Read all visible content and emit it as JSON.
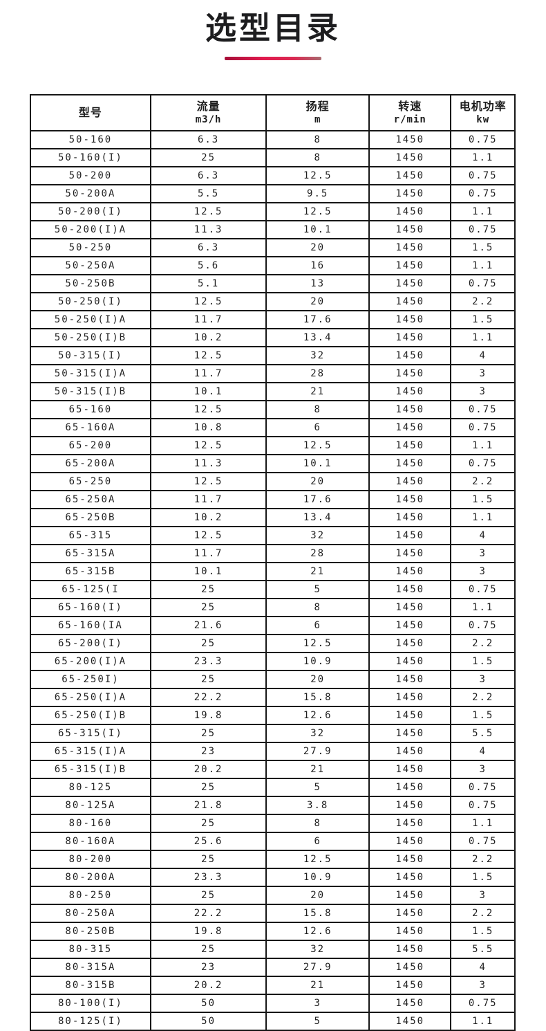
{
  "title": "选型目录",
  "accent": {
    "underline_gradient_start": "#a60f38",
    "underline_gradient_mid": "#e11b4e",
    "underline_gradient_end": "#a96a6f",
    "text_color": "#1d1d1f",
    "border_color": "#161616"
  },
  "table": {
    "columns": [
      {
        "title": "型号",
        "unit": ""
      },
      {
        "title": "流量",
        "unit": "m3/h"
      },
      {
        "title": "扬程",
        "unit": "m"
      },
      {
        "title": "转速",
        "unit": "r/min"
      },
      {
        "title": "电机功率",
        "unit": "kw"
      }
    ],
    "rows": [
      [
        "50-160",
        "6.3",
        "8",
        "1450",
        "0.75"
      ],
      [
        "50-160(I)",
        "25",
        "8",
        "1450",
        "1.1"
      ],
      [
        "50-200",
        "6.3",
        "12.5",
        "1450",
        "0.75"
      ],
      [
        "50-200A",
        "5.5",
        "9.5",
        "1450",
        "0.75"
      ],
      [
        "50-200(I)",
        "12.5",
        "12.5",
        "1450",
        "1.1"
      ],
      [
        "50-200(I)A",
        "11.3",
        "10.1",
        "1450",
        "0.75"
      ],
      [
        "50-250",
        "6.3",
        "20",
        "1450",
        "1.5"
      ],
      [
        "50-250A",
        "5.6",
        "16",
        "1450",
        "1.1"
      ],
      [
        "50-250B",
        "5.1",
        "13",
        "1450",
        "0.75"
      ],
      [
        "50-250(I)",
        "12.5",
        "20",
        "1450",
        "2.2"
      ],
      [
        "50-250(I)A",
        "11.7",
        "17.6",
        "1450",
        "1.5"
      ],
      [
        "50-250(I)B",
        "10.2",
        "13.4",
        "1450",
        "1.1"
      ],
      [
        "50-315(I)",
        "12.5",
        "32",
        "1450",
        "4"
      ],
      [
        "50-315(I)A",
        "11.7",
        "28",
        "1450",
        "3"
      ],
      [
        "50-315(I)B",
        "10.1",
        "21",
        "1450",
        "3"
      ],
      [
        "65-160",
        "12.5",
        "8",
        "1450",
        "0.75"
      ],
      [
        "65-160A",
        "10.8",
        "6",
        "1450",
        "0.75"
      ],
      [
        "65-200",
        "12.5",
        "12.5",
        "1450",
        "1.1"
      ],
      [
        "65-200A",
        "11.3",
        "10.1",
        "1450",
        "0.75"
      ],
      [
        "65-250",
        "12.5",
        "20",
        "1450",
        "2.2"
      ],
      [
        "65-250A",
        "11.7",
        "17.6",
        "1450",
        "1.5"
      ],
      [
        "65-250B",
        "10.2",
        "13.4",
        "1450",
        "1.1"
      ],
      [
        "65-315",
        "12.5",
        "32",
        "1450",
        "4"
      ],
      [
        "65-315A",
        "11.7",
        "28",
        "1450",
        "3"
      ],
      [
        "65-315B",
        "10.1",
        "21",
        "1450",
        "3"
      ],
      [
        "65-125(I",
        "25",
        "5",
        "1450",
        "0.75"
      ],
      [
        "65-160(I)",
        "25",
        "8",
        "1450",
        "1.1"
      ],
      [
        "65-160(IA",
        "21.6",
        "6",
        "1450",
        "0.75"
      ],
      [
        "65-200(I)",
        "25",
        "12.5",
        "1450",
        "2.2"
      ],
      [
        "65-200(I)A",
        "23.3",
        "10.9",
        "1450",
        "1.5"
      ],
      [
        "65-250I)",
        "25",
        "20",
        "1450",
        "3"
      ],
      [
        "65-250(I)A",
        "22.2",
        "15.8",
        "1450",
        "2.2"
      ],
      [
        "65-250(I)B",
        "19.8",
        "12.6",
        "1450",
        "1.5"
      ],
      [
        "65-315(I)",
        "25",
        "32",
        "1450",
        "5.5"
      ],
      [
        "65-315(I)A",
        "23",
        "27.9",
        "1450",
        "4"
      ],
      [
        "65-315(I)B",
        "20.2",
        "21",
        "1450",
        "3"
      ],
      [
        "80-125",
        "25",
        "5",
        "1450",
        "0.75"
      ],
      [
        "80-125A",
        "21.8",
        "3.8",
        "1450",
        "0.75"
      ],
      [
        "80-160",
        "25",
        "8",
        "1450",
        "1.1"
      ],
      [
        "80-160A",
        "25.6",
        "6",
        "1450",
        "0.75"
      ],
      [
        "80-200",
        "25",
        "12.5",
        "1450",
        "2.2"
      ],
      [
        "80-200A",
        "23.3",
        "10.9",
        "1450",
        "1.5"
      ],
      [
        "80-250",
        "25",
        "20",
        "1450",
        "3"
      ],
      [
        "80-250A",
        "22.2",
        "15.8",
        "1450",
        "2.2"
      ],
      [
        "80-250B",
        "19.8",
        "12.6",
        "1450",
        "1.5"
      ],
      [
        "80-315",
        "25",
        "32",
        "1450",
        "5.5"
      ],
      [
        "80-315A",
        "23",
        "27.9",
        "1450",
        "4"
      ],
      [
        "80-315B",
        "20.2",
        "21",
        "1450",
        "3"
      ],
      [
        "80-100(I)",
        "50",
        "3",
        "1450",
        "0.75"
      ],
      [
        "80-125(I)",
        "50",
        "5",
        "1450",
        "1.1"
      ]
    ]
  }
}
